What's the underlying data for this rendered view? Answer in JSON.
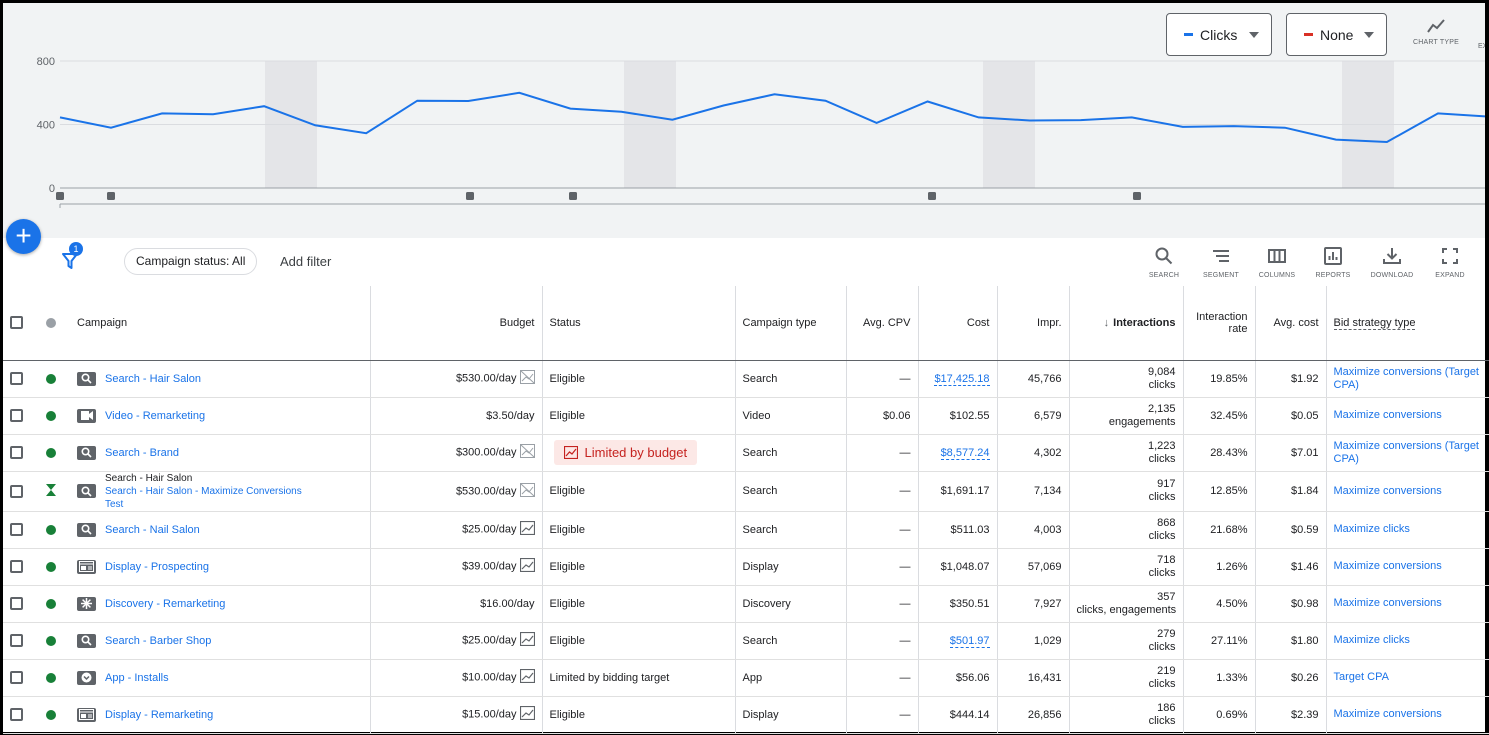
{
  "chart": {
    "metric1": {
      "label": "Clicks",
      "color": "#1a73e8"
    },
    "metric2": {
      "label": "None",
      "color": "#d93025"
    },
    "chart_type_label": "CHART TYPE",
    "expand_cut_label": "EX",
    "y_ticks": [
      "800",
      "400",
      "0"
    ]
  },
  "chart_data": {
    "type": "line",
    "ylim": [
      0,
      800
    ],
    "series": [
      {
        "name": "Clicks",
        "values": [
          445,
          380,
          470,
          465,
          515,
          395,
          345,
          550,
          548,
          600,
          500,
          480,
          430,
          520,
          590,
          550,
          410,
          545,
          445,
          425,
          428,
          445,
          385,
          390,
          380,
          305,
          290,
          470,
          450
        ]
      }
    ]
  },
  "toolbar": {
    "filter_count": "1",
    "campaign_status_chip": "Campaign status: All",
    "add_filter": "Add filter",
    "tools": [
      {
        "name": "search",
        "label": "SEARCH"
      },
      {
        "name": "segment",
        "label": "SEGMENT"
      },
      {
        "name": "columns",
        "label": "COLUMNS"
      },
      {
        "name": "reports",
        "label": "REPORTS"
      },
      {
        "name": "download",
        "label": "DOWNLOAD"
      },
      {
        "name": "expand",
        "label": "EXPAND"
      }
    ]
  },
  "table": {
    "headers": {
      "campaign": "Campaign",
      "budget": "Budget",
      "status": "Status",
      "campaign_type": "Campaign type",
      "avg_cpv": "Avg. CPV",
      "cost": "Cost",
      "impr": "Impr.",
      "interactions": "Interactions",
      "interaction_rate_1": "Interaction",
      "interaction_rate_2": "rate",
      "avg_cost": "Avg. cost",
      "bid_strategy_type": "Bid strategy type"
    },
    "rows": [
      {
        "campaign": "Search - Hair Salon",
        "icon": "search",
        "budget": "$530.00/day",
        "budget_icon": "chart-off",
        "status": "Eligible",
        "type": "Search",
        "cpv": "—",
        "cost": "$17,425.18",
        "cost_link": true,
        "impr": "45,766",
        "inter_num": "9,084",
        "inter_unit": "clicks",
        "rate": "19.85%",
        "avg_cost": "$1.92",
        "bid_1": "Maximize conversions (Target",
        "bid_2": "CPA)"
      },
      {
        "campaign": "Video - Remarketing",
        "icon": "video",
        "budget": "$3.50/day",
        "budget_icon": "",
        "status": "Eligible",
        "type": "Video",
        "cpv": "$0.06",
        "cost": "$102.55",
        "cost_link": false,
        "impr": "6,579",
        "inter_num": "2,135",
        "inter_unit": "engagements",
        "rate": "32.45%",
        "avg_cost": "$0.05",
        "bid_1": "Maximize conversions",
        "bid_2": ""
      },
      {
        "campaign": "Search - Brand",
        "icon": "search",
        "budget": "$300.00/day",
        "budget_icon": "chart-off",
        "status": "Limited by budget",
        "status_limited": true,
        "type": "Search",
        "cpv": "—",
        "cost": "$8,577.24",
        "cost_link": true,
        "impr": "4,302",
        "inter_num": "1,223",
        "inter_unit": "clicks",
        "rate": "28.43%",
        "avg_cost": "$7.01",
        "bid_1": "Maximize conversions (Target",
        "bid_2": "CPA)"
      },
      {
        "campaign_pre": "Search - Hair Salon",
        "campaign": "Search - Hair Salon - Maximize Conversions",
        "campaign_post": "Test",
        "icon": "search",
        "dot": "experiment",
        "budget": "$530.00/day",
        "budget_icon": "chart-off",
        "status": "Eligible",
        "type": "Search",
        "cpv": "—",
        "cost": "$1,691.17",
        "cost_link": false,
        "impr": "7,134",
        "inter_num": "917",
        "inter_unit": "clicks",
        "rate": "12.85%",
        "avg_cost": "$1.84",
        "bid_1": "Maximize conversions",
        "bid_2": ""
      },
      {
        "campaign": "Search - Nail Salon",
        "icon": "search",
        "budget": "$25.00/day",
        "budget_icon": "chart",
        "status": "Eligible",
        "type": "Search",
        "cpv": "—",
        "cost": "$511.03",
        "cost_link": false,
        "impr": "4,003",
        "inter_num": "868",
        "inter_unit": "clicks",
        "rate": "21.68%",
        "avg_cost": "$0.59",
        "bid_1": "Maximize clicks",
        "bid_2": ""
      },
      {
        "campaign": "Display - Prospecting",
        "icon": "display",
        "budget": "$39.00/day",
        "budget_icon": "chart",
        "status": "Eligible",
        "type": "Display",
        "cpv": "—",
        "cost": "$1,048.07",
        "cost_link": false,
        "impr": "57,069",
        "inter_num": "718",
        "inter_unit": "clicks",
        "rate": "1.26%",
        "avg_cost": "$1.46",
        "bid_1": "Maximize conversions",
        "bid_2": ""
      },
      {
        "campaign": "Discovery - Remarketing",
        "icon": "discovery",
        "budget": "$16.00/day",
        "budget_icon": "",
        "status": "Eligible",
        "type": "Discovery",
        "cpv": "—",
        "cost": "$350.51",
        "cost_link": false,
        "impr": "7,927",
        "inter_num": "357",
        "inter_unit": "clicks, engagements",
        "rate": "4.50%",
        "avg_cost": "$0.98",
        "bid_1": "Maximize conversions",
        "bid_2": ""
      },
      {
        "campaign": "Search - Barber Shop",
        "icon": "search",
        "budget": "$25.00/day",
        "budget_icon": "chart",
        "status": "Eligible",
        "type": "Search",
        "cpv": "—",
        "cost": "$501.97",
        "cost_link": true,
        "impr": "1,029",
        "inter_num": "279",
        "inter_unit": "clicks",
        "rate": "27.11%",
        "avg_cost": "$1.80",
        "bid_1": "Maximize clicks",
        "bid_2": ""
      },
      {
        "campaign": "App - Installs",
        "icon": "app",
        "budget": "$10.00/day",
        "budget_icon": "chart",
        "status": "Limited by bidding target",
        "type": "App",
        "cpv": "—",
        "cost": "$56.06",
        "cost_link": false,
        "impr": "16,431",
        "inter_num": "219",
        "inter_unit": "clicks",
        "rate": "1.33%",
        "avg_cost": "$0.26",
        "bid_1": "Target CPA",
        "bid_2": ""
      },
      {
        "campaign": "Display - Remarketing",
        "icon": "display",
        "budget": "$15.00/day",
        "budget_icon": "chart",
        "status": "Eligible",
        "type": "Display",
        "cpv": "—",
        "cost": "$444.14",
        "cost_link": false,
        "impr": "26,856",
        "inter_num": "186",
        "inter_unit": "clicks",
        "rate": "0.69%",
        "avg_cost": "$2.39",
        "bid_1": "Maximize conversions",
        "bid_2": ""
      }
    ]
  }
}
